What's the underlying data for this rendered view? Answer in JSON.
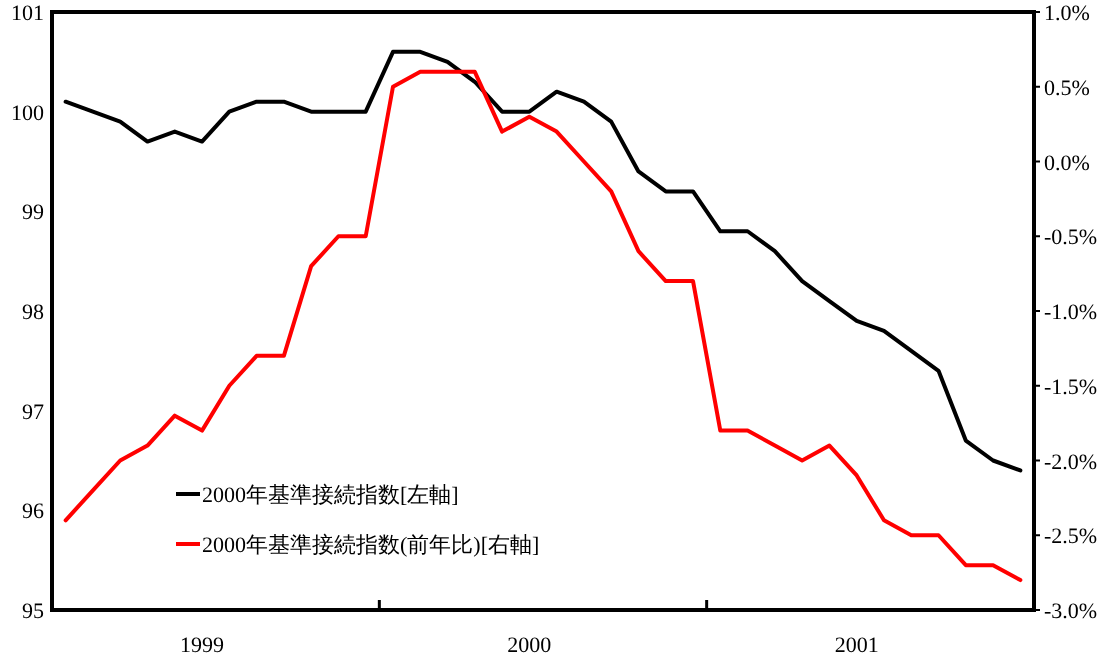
{
  "chart_data": {
    "type": "line",
    "categories": [
      null,
      null,
      null,
      null,
      null,
      "1999",
      null,
      null,
      null,
      null,
      null,
      null,
      null,
      null,
      null,
      null,
      null,
      "2000",
      null,
      null,
      null,
      null,
      null,
      null,
      null,
      null,
      null,
      null,
      null,
      "2001",
      null,
      null,
      null,
      null,
      null,
      null
    ],
    "series": [
      {
        "name": "2000年基準接続指数[左軸]",
        "color": "#000000",
        "values": [
          100.1,
          100.0,
          99.9,
          99.7,
          99.8,
          99.7,
          100.0,
          100.1,
          100.1,
          100.0,
          100.0,
          100.0,
          100.6,
          100.6,
          100.5,
          100.3,
          100.0,
          100.0,
          100.2,
          100.1,
          99.9,
          99.4,
          99.2,
          99.2,
          98.8,
          98.8,
          98.6,
          98.3,
          98.1,
          97.9,
          97.8,
          97.6,
          97.4,
          96.7,
          96.5,
          96.4
        ]
      },
      {
        "name": "2000年基準接続指数(前年比)[右軸]",
        "color": "#ff0000",
        "axis": "y2",
        "values": [
          -2.4,
          -2.2,
          -2.0,
          -1.9,
          -1.7,
          -1.8,
          -1.5,
          -1.3,
          -1.3,
          -0.7,
          -0.5,
          -0.5,
          0.5,
          0.6,
          0.6,
          0.6,
          0.2,
          0.3,
          0.2,
          0.0,
          -0.2,
          -0.6,
          -0.8,
          -0.8,
          -1.8,
          -1.8,
          -1.9,
          -2.0,
          -1.9,
          -2.1,
          -2.4,
          -2.5,
          -2.5,
          -2.7,
          -2.7,
          -2.8
        ]
      }
    ],
    "ylim": [
      95,
      101
    ],
    "yticks": [
      95,
      96,
      97,
      98,
      99,
      100,
      101
    ],
    "y2lim": [
      -3,
      1
    ],
    "y2ticks": [
      {
        "value": -3,
        "label": "-3.0%"
      },
      {
        "value": -2.5,
        "label": "-2.5%"
      },
      {
        "value": -2,
        "label": "-2.0%"
      },
      {
        "value": -1.5,
        "label": "-1.5%"
      },
      {
        "value": -1,
        "label": "-1.0%"
      },
      {
        "value": -0.5,
        "label": "-0.5%"
      },
      {
        "value": 0,
        "label": "0.0%"
      },
      {
        "value": 0.5,
        "label": "0.5%"
      },
      {
        "value": 1,
        "label": "1.0%"
      }
    ],
    "legend": "bottom left",
    "grid": false
  }
}
